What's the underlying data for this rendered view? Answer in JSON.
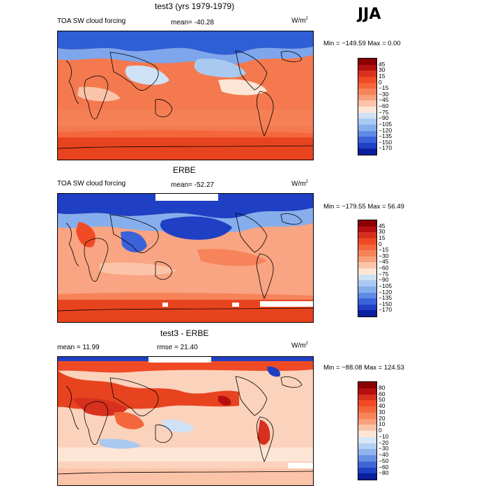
{
  "season": "JJA",
  "panels": [
    {
      "title": "test3 (yrs 1979-1979)",
      "variable": "TOA SW cloud forcing",
      "stat_left": "",
      "stat_mid": "mean= -40.28",
      "units_base": "W/m",
      "units_exp": "2",
      "minmax": "Min = −149.59 Max =    0.00",
      "colorbar_labels": [
        "45",
        "30",
        "15",
        "0",
        "−15",
        "−30",
        "−45",
        "−60",
        "−75",
        "−90",
        "−105",
        "−120",
        "−135",
        "−150",
        "−170"
      ],
      "colorbar_colors": [
        "#8b0000",
        "#b50f0f",
        "#d7301f",
        "#f04a25",
        "#f4673c",
        "#f7835a",
        "#f9a07c",
        "#fbc4a9",
        "#fde6d6",
        "#cfe1f5",
        "#a9c9f0",
        "#86aeec",
        "#5f8ae6",
        "#3a62d9",
        "#1f3fc4",
        "#0a1f9c"
      ],
      "map_fill": "#f4794e"
    },
    {
      "title": "ERBE",
      "variable": "TOA SW cloud forcing",
      "stat_left": "",
      "stat_mid": "mean= -52.27",
      "units_base": "W/m",
      "units_exp": "2",
      "minmax": "Min = −179.55 Max =  56.49",
      "colorbar_labels": [
        "45",
        "30",
        "15",
        "0",
        "−15",
        "−30",
        "−45",
        "−60",
        "−75",
        "−90",
        "−105",
        "−120",
        "−135",
        "−150",
        "−170"
      ],
      "colorbar_colors": [
        "#8b0000",
        "#b50f0f",
        "#d7301f",
        "#f04a25",
        "#f4673c",
        "#f7835a",
        "#f9a07c",
        "#fbc4a9",
        "#fde6d6",
        "#cfe1f5",
        "#a9c9f0",
        "#86aeec",
        "#5f8ae6",
        "#3a62d9",
        "#1f3fc4",
        "#0a1f9c"
      ],
      "map_fill": "#f9a482"
    },
    {
      "title": "test3 - ERBE",
      "variable": "",
      "stat_left": "mean =   11.99",
      "stat_mid": "rmse =   21.40",
      "units_base": "W/m",
      "units_exp": "2",
      "minmax": "Min = −88.08 Max = 124.53",
      "colorbar_labels": [
        "80",
        "60",
        "50",
        "40",
        "30",
        "20",
        "10",
        "0",
        "−10",
        "−20",
        "−30",
        "−40",
        "−50",
        "−60",
        "−80"
      ],
      "colorbar_colors": [
        "#8b0000",
        "#b50f0f",
        "#d7301f",
        "#f04a25",
        "#f4673c",
        "#f7835a",
        "#f9a07c",
        "#fbc4a9",
        "#fde6d6",
        "#d8e6f6",
        "#b4cff1",
        "#8fb3ec",
        "#6690e4",
        "#3f66d6",
        "#1f3fc4",
        "#0a1f9c"
      ],
      "map_fill": "#fbd2bc"
    }
  ]
}
